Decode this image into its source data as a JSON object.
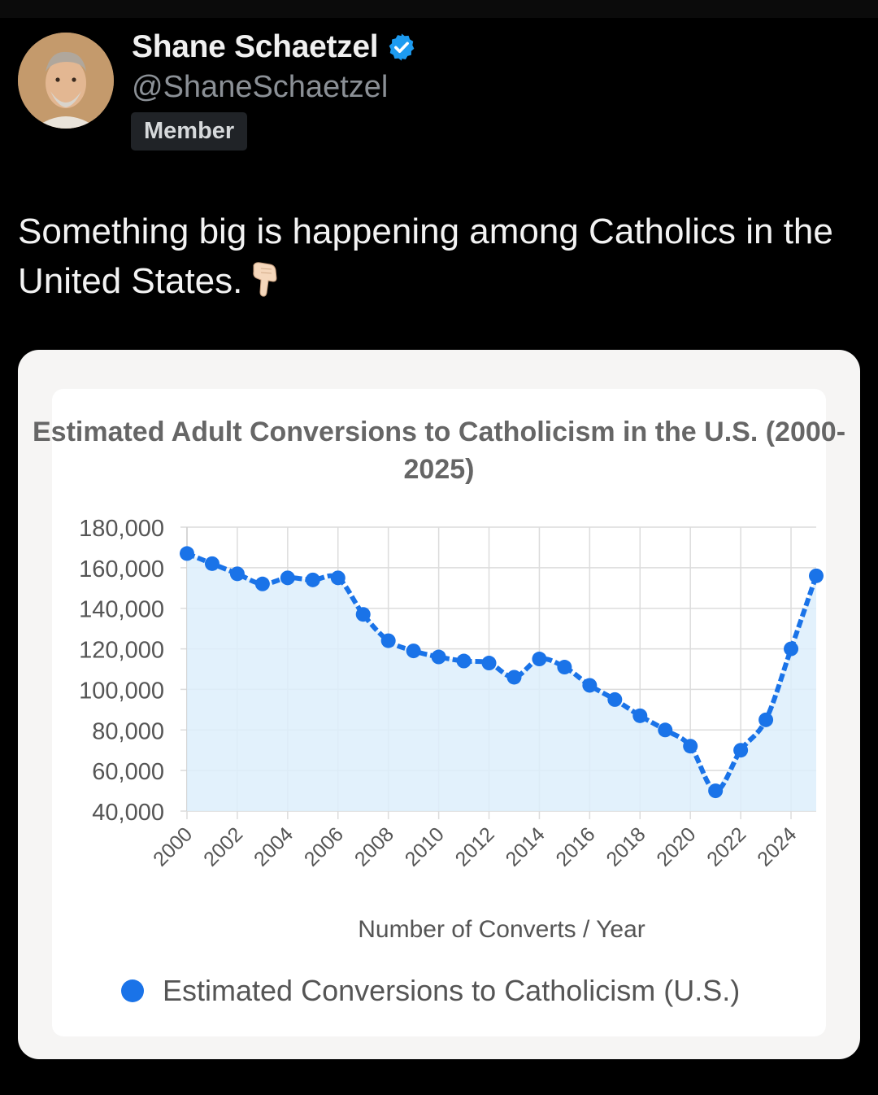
{
  "post": {
    "author_name": "Shane Schaetzel",
    "handle": "@ShaneSchaetzel",
    "badge": "Member",
    "text": "Something big is happening among Catholics in the United States.",
    "emoji": "👇🏻"
  },
  "colors": {
    "background": "#000000",
    "verified": "#1d9bf0",
    "series": "#1a73e8",
    "area": "#ddeefc"
  },
  "chart_data": {
    "type": "line",
    "title": "Estimated Adult Conversions to Catholicism in the U.S. (2000-2025)",
    "xlabel": "Number of Converts / Year",
    "ylabel": "",
    "ylim": [
      40000,
      180000
    ],
    "yticks": [
      "180,000",
      "160,000",
      "140,000",
      "120,000",
      "100,000",
      "80,000",
      "60,000",
      "40,000"
    ],
    "xticks": [
      "2000",
      "2002",
      "2004",
      "2006",
      "2008",
      "2010",
      "2012",
      "2014",
      "2016",
      "2018",
      "2020",
      "2022",
      "2024"
    ],
    "grid": true,
    "legend": "bottom",
    "series": [
      {
        "name": "Estimated Conversions to Catholicism (U.S.)",
        "x": [
          2000,
          2001,
          2002,
          2003,
          2004,
          2005,
          2006,
          2007,
          2008,
          2009,
          2010,
          2011,
          2012,
          2013,
          2014,
          2015,
          2016,
          2017,
          2018,
          2019,
          2020,
          2021,
          2022,
          2023,
          2024,
          2025
        ],
        "values": [
          167000,
          162000,
          157000,
          152000,
          155000,
          154000,
          155000,
          137000,
          124000,
          119000,
          116000,
          114000,
          113000,
          106000,
          115000,
          111000,
          102000,
          95000,
          87000,
          80000,
          72000,
          50000,
          70000,
          85000,
          120000,
          156000
        ]
      }
    ]
  }
}
